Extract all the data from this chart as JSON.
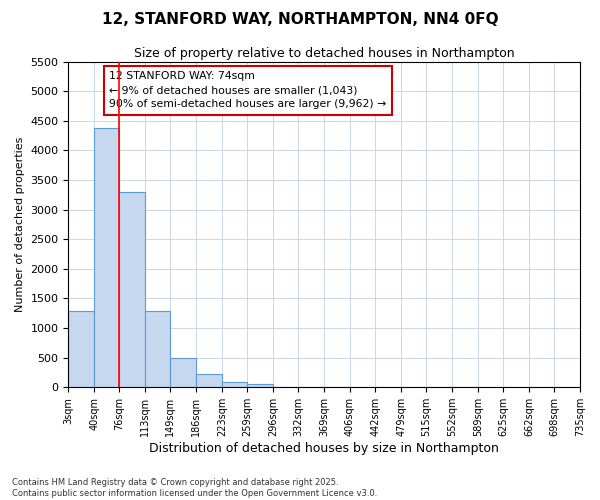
{
  "title_line1": "12, STANFORD WAY, NORTHAMPTON, NN4 0FQ",
  "title_line2": "Size of property relative to detached houses in Northampton",
  "xlabel": "Distribution of detached houses by size in Northampton",
  "ylabel": "Number of detached properties",
  "bins": [
    "3sqm",
    "40sqm",
    "76sqm",
    "113sqm",
    "149sqm",
    "186sqm",
    "223sqm",
    "259sqm",
    "296sqm",
    "332sqm",
    "369sqm",
    "406sqm",
    "442sqm",
    "479sqm",
    "515sqm",
    "552sqm",
    "589sqm",
    "625sqm",
    "662sqm",
    "698sqm",
    "735sqm"
  ],
  "bin_edges": [
    3,
    40,
    76,
    113,
    149,
    186,
    223,
    259,
    296,
    332,
    369,
    406,
    442,
    479,
    515,
    552,
    589,
    625,
    662,
    698,
    735
  ],
  "bar_values": [
    1280,
    4380,
    3300,
    1280,
    500,
    230,
    90,
    50,
    0,
    0,
    0,
    0,
    0,
    0,
    0,
    0,
    0,
    0,
    0,
    0
  ],
  "bar_color": "#c5d8ef",
  "bar_edge_color": "#5b9bd5",
  "red_line_x": 76,
  "ylim": [
    0,
    5500
  ],
  "yticks": [
    0,
    500,
    1000,
    1500,
    2000,
    2500,
    3000,
    3500,
    4000,
    4500,
    5000,
    5500
  ],
  "annotation_text": "12 STANFORD WAY: 74sqm\n← 9% of detached houses are smaller (1,043)\n90% of semi-detached houses are larger (9,962) →",
  "annotation_box_color": "#ffffff",
  "annotation_box_edgecolor": "#cc0000",
  "footer_line1": "Contains HM Land Registry data © Crown copyright and database right 2025.",
  "footer_line2": "Contains public sector information licensed under the Open Government Licence v3.0.",
  "background_color": "#ffffff",
  "grid_color": "#c8d8e8"
}
